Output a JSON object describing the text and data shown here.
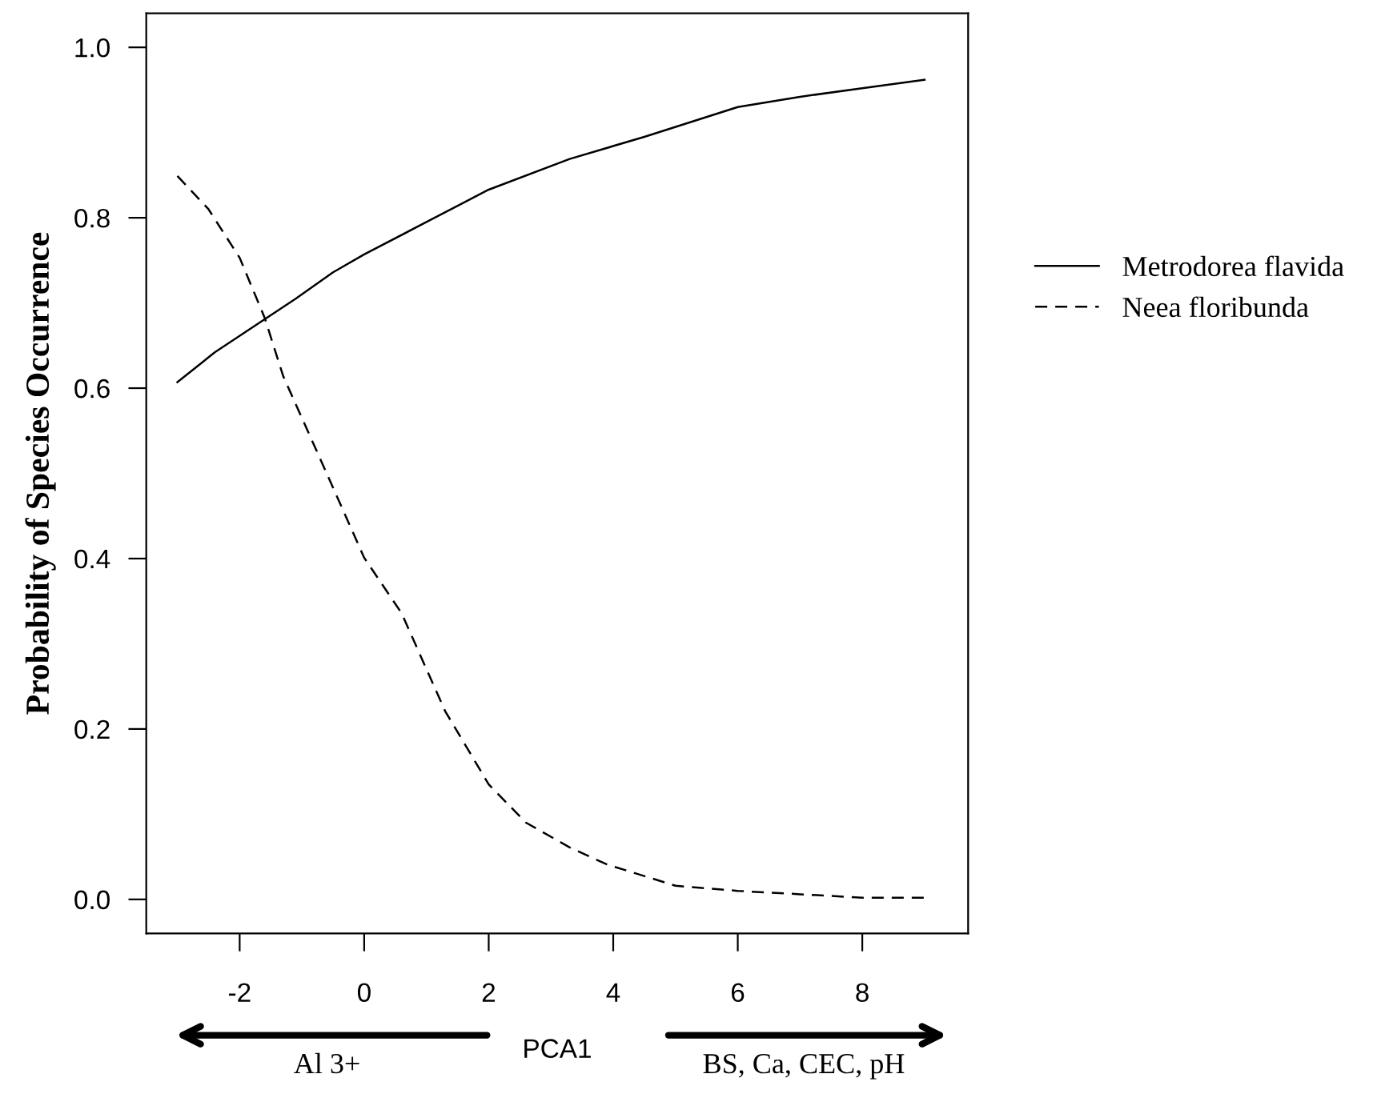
{
  "chart_data": {
    "type": "line",
    "ylabel": "Probability of Species Occurrence",
    "xlabel": "PCA1",
    "xlim": [
      -3.5,
      9.7
    ],
    "xticks": [
      -2,
      0,
      2,
      4,
      6,
      8
    ],
    "ylim": [
      -0.04,
      1.04
    ],
    "yticks": [
      {
        "value": 0,
        "label": "0.0"
      },
      {
        "value": 0.2,
        "label": "0.2"
      },
      {
        "value": 0.4,
        "label": "0.4"
      },
      {
        "value": 0.6,
        "label": "0.6"
      },
      {
        "value": 0.8,
        "label": "0.8"
      },
      {
        "value": 1,
        "label": "1.0"
      }
    ],
    "grid": false,
    "legend": "right",
    "marker": "none",
    "annotations": [
      "Al 3+",
      "BS, Ca, CEC, pH"
    ],
    "series": [
      {
        "name": "Metrodorea flavida",
        "color": "#000000",
        "line_style": "solid",
        "x": [
          -3,
          -2.4,
          -1.1,
          -0.5,
          0,
          1,
          2,
          3.3,
          4.5,
          6,
          7,
          8,
          9
        ],
        "values": [
          0.607,
          0.642,
          0.705,
          0.736,
          0.757,
          0.795,
          0.833,
          0.869,
          0.895,
          0.93,
          0.942,
          0.952,
          0.962
        ]
      },
      {
        "name": "Neea floribunda",
        "color": "#000000",
        "line_style": "dashed",
        "x": [
          -3,
          -2.5,
          -2,
          -1.6,
          -1.3,
          -0.7,
          0,
          0.6,
          1.3,
          2,
          2.6,
          3.3,
          3.9,
          5,
          6,
          7,
          8,
          9
        ],
        "values": [
          0.849,
          0.81,
          0.753,
          0.683,
          0.614,
          0.516,
          0.401,
          0.336,
          0.221,
          0.135,
          0.09,
          0.061,
          0.041,
          0.016,
          0.01,
          0.006,
          0.002,
          0.002
        ]
      }
    ]
  }
}
